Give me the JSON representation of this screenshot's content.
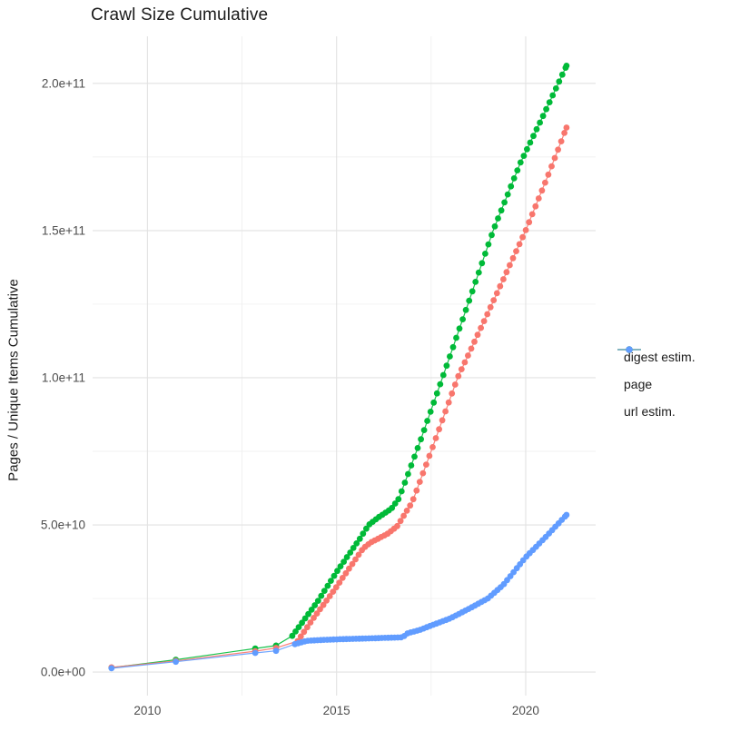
{
  "chart_data": {
    "type": "scatter",
    "title": "Crawl Size Cumulative",
    "xlabel": "",
    "ylabel": "Pages / Unique Items Cumulative",
    "legend_position": "right",
    "grid": "on",
    "background_color": "#ffffff",
    "major_grid_color": "#e2e2e2",
    "minor_grid_color": "#f0f0f0",
    "tick_label_color": "#4d4d4d",
    "xlim": [
      2008.55,
      2021.85
    ],
    "ylim": [
      -8000000000,
      216000000000
    ],
    "x_ticks": [
      {
        "label": "2010",
        "value": 2010
      },
      {
        "label": "2015",
        "value": 2015
      },
      {
        "label": "2020",
        "value": 2020
      }
    ],
    "x_minor": [
      2012.5,
      2017.5
    ],
    "y_ticks": [
      {
        "label": "0.0e+00",
        "value": 0
      },
      {
        "label": "5.0e+10",
        "value": 50000000000
      },
      {
        "label": "1.0e+11",
        "value": 100000000000
      },
      {
        "label": "1.5e+11",
        "value": 150000000000
      },
      {
        "label": "2.0e+11",
        "value": 200000000000
      }
    ],
    "y_minor": [
      25000000000,
      75000000000,
      125000000000,
      175000000000
    ],
    "sparse_until": 2013.6,
    "dot_interval_years": 0.085,
    "draw_order": [
      1,
      0,
      2
    ],
    "series": [
      {
        "name": "digest estim.",
        "color": "#F8766D",
        "points": [
          [
            2009.05,
            1600000000.0
          ],
          [
            2010.75,
            3800000000.0
          ],
          [
            2012.85,
            7100000000.0
          ],
          [
            2013.4,
            8200000000.0
          ],
          [
            2013.97,
            10500000000.0
          ],
          [
            2014.4,
            18500000000.0
          ],
          [
            2014.76,
            24700000000.0
          ],
          [
            2015.0,
            29000000000.0
          ],
          [
            2015.7,
            42000000000.0
          ],
          [
            2015.9,
            44000000000.0
          ],
          [
            2016.35,
            47000000000.0
          ],
          [
            2016.6,
            49500000000.0
          ],
          [
            2017.0,
            57700000000.0
          ],
          [
            2017.5,
            75000000000.0
          ],
          [
            2018.2,
            100000000000.0
          ],
          [
            2019.0,
            122000000000.0
          ],
          [
            2020.0,
            150000000000.0
          ],
          [
            2020.6,
            169000000000.0
          ],
          [
            2021.08,
            185000000000.0
          ]
        ]
      },
      {
        "name": "page",
        "color": "#00BA38",
        "points": [
          [
            2009.05,
            1500000000.0
          ],
          [
            2010.75,
            4200000000.0
          ],
          [
            2012.85,
            8000000000.0
          ],
          [
            2013.4,
            9000000000.0
          ],
          [
            2013.83,
            12300000000.0
          ],
          [
            2014.1,
            17000000000.0
          ],
          [
            2014.5,
            24000000000.0
          ],
          [
            2015.0,
            34000000000.0
          ],
          [
            2015.6,
            45000000000.0
          ],
          [
            2015.85,
            50000000000.0
          ],
          [
            2016.1,
            52500000000.0
          ],
          [
            2016.45,
            55500000000.0
          ],
          [
            2016.65,
            59000000000.0
          ],
          [
            2017.2,
            78000000000.0
          ],
          [
            2017.8,
            100000000000.0
          ],
          [
            2018.5,
            126000000000.0
          ],
          [
            2019.14,
            150000000000.0
          ],
          [
            2019.86,
            173000000000.0
          ],
          [
            2020.5,
            190000000000.0
          ],
          [
            2021.08,
            206000000000.0
          ]
        ]
      },
      {
        "name": "url estim.",
        "color": "#619CFF",
        "points": [
          [
            2009.05,
            1300000000.0
          ],
          [
            2010.75,
            3500000000.0
          ],
          [
            2012.85,
            6500000000.0
          ],
          [
            2013.4,
            7200000000.0
          ],
          [
            2013.9,
            9500000000.0
          ],
          [
            2014.2,
            10600000000.0
          ],
          [
            2014.6,
            10900000000.0
          ],
          [
            2015.2,
            11200000000.0
          ],
          [
            2016.0,
            11500000000.0
          ],
          [
            2016.75,
            11800000000.0
          ],
          [
            2016.88,
            13200000000.0
          ],
          [
            2017.2,
            14300000000.0
          ],
          [
            2017.5,
            15800000000.0
          ],
          [
            2018.0,
            18200000000.0
          ],
          [
            2018.5,
            21500000000.0
          ],
          [
            2019.0,
            25000000000.0
          ],
          [
            2019.4,
            29500000000.0
          ],
          [
            2020.0,
            39000000000.0
          ],
          [
            2020.5,
            45500000000.0
          ],
          [
            2021.08,
            53400000000.0
          ]
        ]
      }
    ]
  }
}
